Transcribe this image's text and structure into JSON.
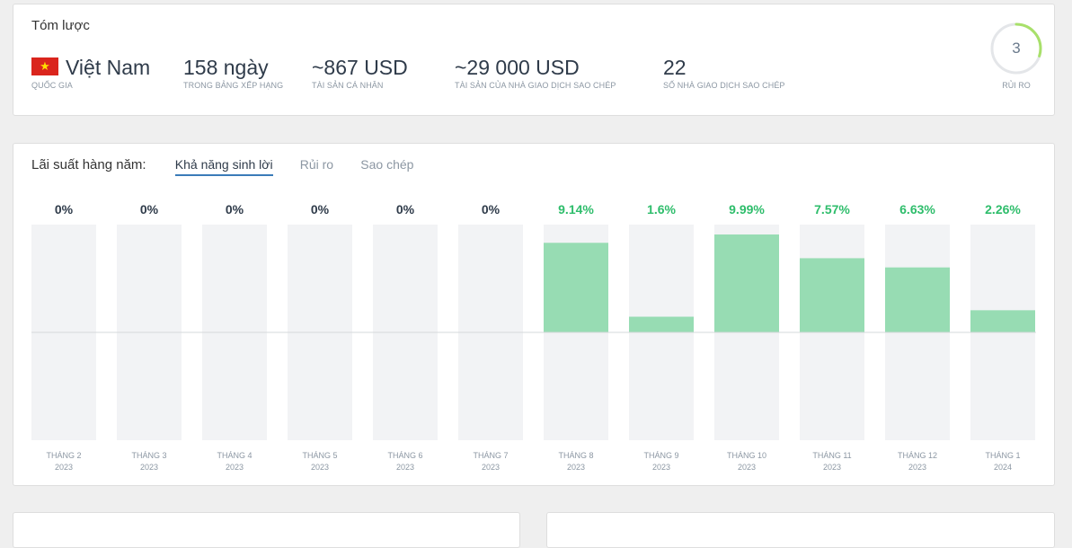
{
  "summary": {
    "title": "Tóm lược",
    "country": {
      "flag_star": "★",
      "value": "Việt Nam",
      "label": "QUỐC GIA"
    },
    "days": {
      "value": "158 ngày",
      "label": "TRONG BẢNG XẾP HẠNG"
    },
    "personal_assets": {
      "value": "~867 USD",
      "label": "TÀI SẢN CÁ NHÂN"
    },
    "copier_assets": {
      "value": "~29 000 USD",
      "label": "TÀI SẢN CỦA NHÀ GIAO DỊCH SAO CHÉP"
    },
    "copiers": {
      "value": "22",
      "label": "SỐ NHÀ GIAO DỊCH SAO CHÉP"
    },
    "risk": {
      "value": "3",
      "label": "RỦI RO",
      "level_fraction": 0.3
    },
    "colors": {
      "flag_red": "#da251d",
      "flag_star": "#ffdd00",
      "risk_arc": "#a8e06a"
    }
  },
  "returns": {
    "heading": "Lãi suất hàng năm:",
    "tabs": [
      {
        "label": "Khả năng sinh lời",
        "active": true
      },
      {
        "label": "Rủi ro",
        "active": false
      },
      {
        "label": "Sao chép",
        "active": false
      }
    ]
  },
  "chart_data": {
    "type": "bar",
    "categories": [
      [
        "THÁNG 2",
        "2023"
      ],
      [
        "THÁNG 3",
        "2023"
      ],
      [
        "THÁNG 4",
        "2023"
      ],
      [
        "THÁNG 5",
        "2023"
      ],
      [
        "THÁNG 6",
        "2023"
      ],
      [
        "THÁNG 7",
        "2023"
      ],
      [
        "THÁNG 8",
        "2023"
      ],
      [
        "THÁNG 9",
        "2023"
      ],
      [
        "THÁNG 10",
        "2023"
      ],
      [
        "THÁNG 11",
        "2023"
      ],
      [
        "THÁNG 12",
        "2023"
      ],
      [
        "THÁNG 1",
        "2024"
      ]
    ],
    "values": [
      0,
      0,
      0,
      0,
      0,
      0,
      9.14,
      1.6,
      9.99,
      7.57,
      6.63,
      2.26
    ],
    "labels": [
      "0%",
      "0%",
      "0%",
      "0%",
      "0%",
      "0%",
      "9.14%",
      "1.6%",
      "9.99%",
      "7.57%",
      "6.63%",
      "2.26%"
    ],
    "ylim": [
      -11,
      11
    ],
    "colors": {
      "positive_bar": "#97dcb3",
      "positive_label": "#2ebd6b",
      "zero_label": "#2f3b4a",
      "track": "#f2f3f5"
    }
  }
}
